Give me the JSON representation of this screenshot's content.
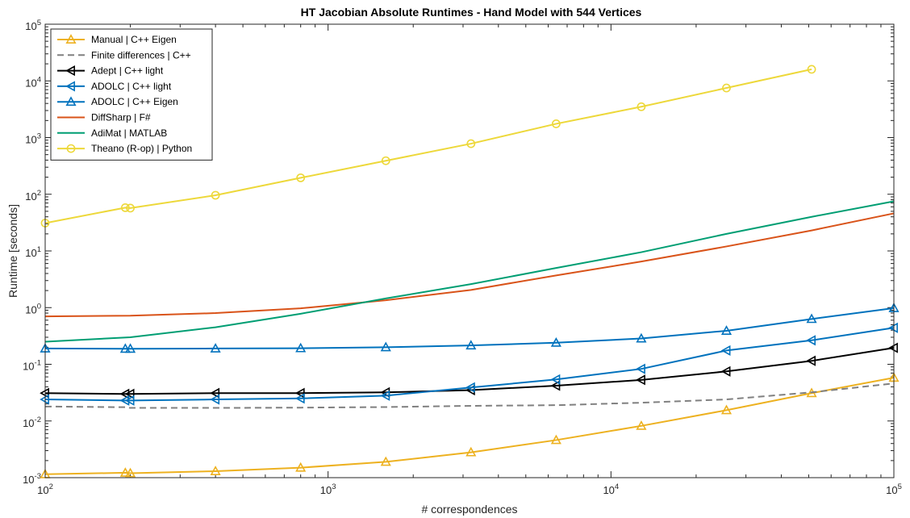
{
  "chart_data": {
    "type": "line",
    "title": "HT Jacobian Absolute Runtimes - Hand Model with 544 Vertices",
    "xlabel": "# correspondences",
    "ylabel": "Runtime [seconds]",
    "xscale": "log",
    "yscale": "log",
    "xlim": [
      100,
      100000
    ],
    "ylim": [
      0.001,
      100000
    ],
    "xticks": [
      {
        "value": 100,
        "base": "10",
        "exp": "2"
      },
      {
        "value": 1000,
        "base": "10",
        "exp": "3"
      },
      {
        "value": 10000,
        "base": "10",
        "exp": "4"
      },
      {
        "value": 100000,
        "base": "10",
        "exp": "5"
      }
    ],
    "yticks": [
      {
        "value": 0.001,
        "base": "10",
        "exp": "-3"
      },
      {
        "value": 0.01,
        "base": "10",
        "exp": "-2"
      },
      {
        "value": 0.1,
        "base": "10",
        "exp": "-1"
      },
      {
        "value": 1,
        "base": "10",
        "exp": "0"
      },
      {
        "value": 10,
        "base": "10",
        "exp": "1"
      },
      {
        "value": 100,
        "base": "10",
        "exp": "2"
      },
      {
        "value": 1000,
        "base": "10",
        "exp": "3"
      },
      {
        "value": 10000,
        "base": "10",
        "exp": "4"
      },
      {
        "value": 100000,
        "base": "10",
        "exp": "5"
      }
    ],
    "grid": false,
    "legend_position": "top-left",
    "series": [
      {
        "name": "Manual | C++ Eigen",
        "color": "#EDB120",
        "marker": "triangle-up",
        "dash": "solid",
        "x": [
          100,
          192,
          200,
          400,
          800,
          1600,
          3200,
          6400,
          12800,
          25600,
          51200,
          100000
        ],
        "y": [
          0.00115,
          0.00122,
          0.0012,
          0.0013,
          0.0015,
          0.0019,
          0.0028,
          0.0046,
          0.0082,
          0.0155,
          0.031,
          0.058
        ]
      },
      {
        "name": "Finite differences | C++",
        "color": "#808080",
        "marker": "none",
        "dash": "dashed",
        "x": [
          100,
          192,
          200,
          400,
          800,
          1600,
          3200,
          6400,
          12800,
          25600,
          51200,
          100000
        ],
        "y": [
          0.018,
          0.0175,
          0.017,
          0.017,
          0.0172,
          0.0176,
          0.0185,
          0.019,
          0.021,
          0.024,
          0.032,
          0.046
        ]
      },
      {
        "name": "Adept | C++ light",
        "color": "#000000",
        "marker": "triangle-left",
        "dash": "solid",
        "x": [
          100,
          192,
          200,
          400,
          800,
          1600,
          3200,
          6400,
          12800,
          25600,
          51200,
          100000
        ],
        "y": [
          0.031,
          0.03,
          0.03,
          0.031,
          0.031,
          0.032,
          0.035,
          0.042,
          0.053,
          0.075,
          0.115,
          0.195
        ]
      },
      {
        "name": "ADOLC | C++ light",
        "color": "#0072BD",
        "marker": "triangle-left",
        "dash": "solid",
        "x": [
          100,
          192,
          200,
          400,
          800,
          1600,
          3200,
          6400,
          12800,
          25600,
          51200,
          100000
        ],
        "y": [
          0.024,
          0.023,
          0.023,
          0.024,
          0.025,
          0.028,
          0.039,
          0.054,
          0.083,
          0.175,
          0.265,
          0.44
        ]
      },
      {
        "name": "ADOLC | C++ Eigen",
        "color": "#0072BD",
        "marker": "triangle-up",
        "dash": "solid",
        "x": [
          100,
          192,
          200,
          400,
          800,
          1600,
          3200,
          6400,
          12800,
          25600,
          51200,
          100000
        ],
        "y": [
          0.19,
          0.188,
          0.188,
          0.19,
          0.192,
          0.2,
          0.215,
          0.24,
          0.285,
          0.39,
          0.63,
          0.98
        ]
      },
      {
        "name": "DiffSharp | F#",
        "color": "#D95319",
        "marker": "none",
        "dash": "solid",
        "x": [
          100,
          200,
          400,
          800,
          1600,
          3200,
          6400,
          12800,
          25600,
          51200,
          100000
        ],
        "y": [
          0.7,
          0.72,
          0.8,
          0.97,
          1.35,
          2.05,
          3.7,
          6.5,
          12,
          23,
          46
        ]
      },
      {
        "name": "AdiMat | MATLAB",
        "color": "#009E73",
        "marker": "none",
        "dash": "solid",
        "x": [
          100,
          200,
          400,
          800,
          1600,
          3200,
          6400,
          12800,
          25600,
          51200,
          100000
        ],
        "y": [
          0.25,
          0.3,
          0.45,
          0.78,
          1.45,
          2.6,
          5.0,
          9.5,
          20,
          40,
          75
        ]
      },
      {
        "name": "Theano (R-op) | Python",
        "color": "#EDD83A",
        "marker": "circle",
        "dash": "solid",
        "x": [
          100,
          192,
          200,
          400,
          800,
          1600,
          3200,
          6400,
          12800,
          25600,
          51200
        ],
        "y": [
          31,
          58,
          57,
          96,
          195,
          390,
          780,
          1750,
          3500,
          7500,
          16000
        ]
      }
    ]
  }
}
